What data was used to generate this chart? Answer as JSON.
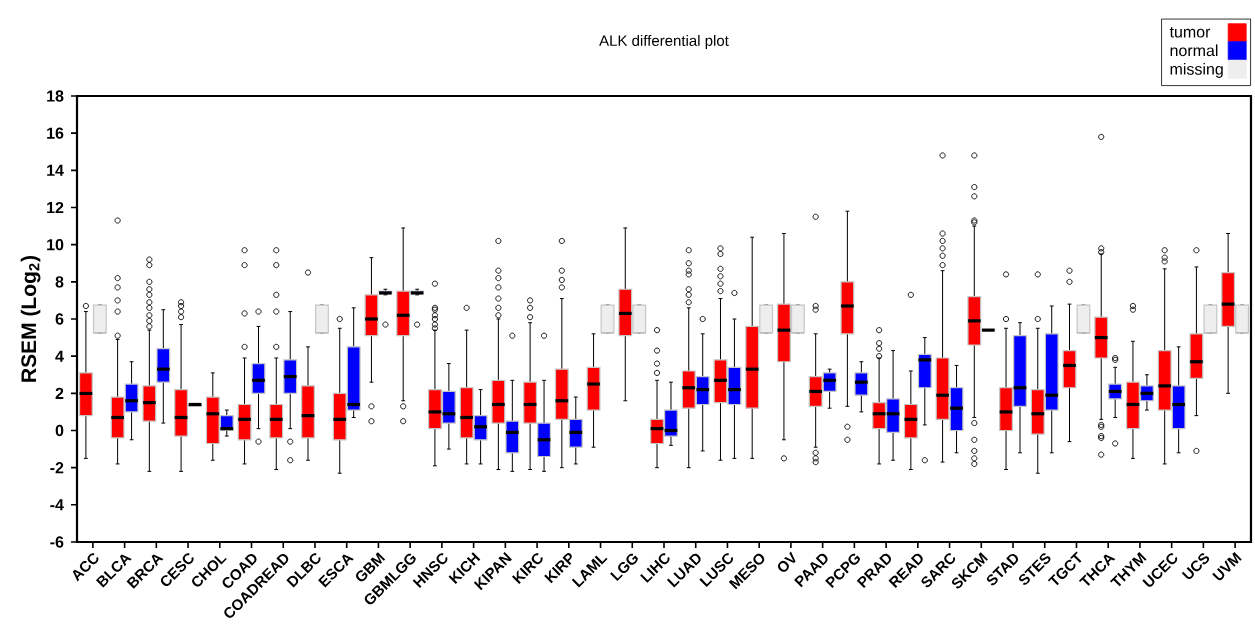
{
  "chart_data": {
    "type": "box",
    "title": "ALK differential plot",
    "ylabel": "RSEM (Log$_{2}$)",
    "categories": [
      "ACC",
      "BLCA",
      "BRCA",
      "CESC",
      "CHOL",
      "COAD",
      "COADREAD",
      "DLBC",
      "ESCA",
      "GBM",
      "GBMLGG",
      "HNSC",
      "KICH",
      "KIPAN",
      "KIRC",
      "KIRP",
      "LAML",
      "LGG",
      "LIHC",
      "LUAD",
      "LUSC",
      "MESO",
      "OV",
      "PAAD",
      "PCPG",
      "PRAD",
      "READ",
      "SARC",
      "SKCM",
      "STAD",
      "STES",
      "TGCT",
      "THCA",
      "THYM",
      "UCEC",
      "UCS",
      "UVM"
    ],
    "ylim": [
      -6,
      18
    ],
    "yticks": [
      -6,
      -4,
      -2,
      0,
      2,
      4,
      6,
      8,
      10,
      12,
      14,
      16,
      18
    ],
    "legend": "top right",
    "marker": "circle",
    "series": [
      {
        "name": "tumor",
        "color": "#ff0000",
        "boxes": [
          {
            "low": -1.5,
            "q1": 0.8,
            "median": 2.0,
            "q3": 3.1,
            "high": 6.4,
            "outliers": [
              6.7
            ]
          },
          {
            "low": -1.8,
            "q1": -0.4,
            "median": 0.7,
            "q3": 1.8,
            "high": 4.9,
            "outliers": [
              5.1,
              6.4,
              7.0,
              7.7,
              8.2,
              11.3
            ]
          },
          {
            "low": -2.2,
            "q1": 0.5,
            "median": 1.5,
            "q3": 2.4,
            "high": 5.4,
            "outliers": [
              5.6,
              5.9,
              6.2,
              6.6,
              6.9,
              7.3,
              7.6,
              8.0,
              8.9,
              9.2
            ]
          },
          {
            "low": -2.2,
            "q1": -0.3,
            "median": 0.7,
            "q3": 2.2,
            "high": 5.7,
            "outliers": [
              6.1,
              6.4,
              6.7,
              6.9
            ]
          },
          {
            "low": -1.6,
            "q1": -0.7,
            "median": 0.9,
            "q3": 1.8,
            "high": 3.1
          },
          {
            "low": -1.8,
            "q1": -0.5,
            "median": 0.6,
            "q3": 1.4,
            "high": 3.9,
            "outliers": [
              4.5,
              6.3,
              8.9,
              9.7
            ]
          },
          {
            "low": -2.1,
            "q1": -0.4,
            "median": 0.6,
            "q3": 1.4,
            "high": 3.9,
            "outliers": [
              4.5,
              6.4,
              7.3,
              8.9,
              9.7
            ]
          },
          {
            "low": -1.6,
            "q1": -0.4,
            "median": 0.8,
            "q3": 2.4,
            "high": 4.5,
            "outliers": [
              8.5
            ]
          },
          {
            "low": -2.3,
            "q1": -0.5,
            "median": 0.6,
            "q3": 2.0,
            "high": 5.5,
            "outliers": [
              6.0
            ]
          },
          {
            "low": 2.6,
            "q1": 5.1,
            "median": 6.0,
            "q3": 7.3,
            "high": 9.3,
            "outliers": [
              0.5,
              1.3
            ]
          },
          {
            "low": 1.6,
            "q1": 5.1,
            "median": 6.2,
            "q3": 7.5,
            "high": 10.9,
            "outliers": [
              0.5,
              1.3
            ]
          },
          {
            "low": -1.9,
            "q1": 0.1,
            "median": 1.0,
            "q3": 2.2,
            "high": 5.4,
            "outliers": [
              5.5,
              5.7,
              6.0,
              6.2,
              6.5,
              6.6,
              7.9
            ]
          },
          {
            "low": -1.8,
            "q1": -0.4,
            "median": 0.7,
            "q3": 2.3,
            "high": 5.4,
            "outliers": [
              6.6
            ]
          },
          {
            "low": -2.1,
            "q1": 0.4,
            "median": 1.4,
            "q3": 2.7,
            "high": 6.0,
            "outliers": [
              6.2,
              6.6,
              7.1,
              7.7,
              8.2,
              8.6,
              10.2
            ]
          },
          {
            "low": -2.1,
            "q1": 0.4,
            "median": 1.4,
            "q3": 2.6,
            "high": 5.8,
            "outliers": [
              6.1,
              6.6,
              7.0
            ]
          },
          {
            "low": -2.0,
            "q1": 0.6,
            "median": 1.6,
            "q3": 3.3,
            "high": 7.1,
            "outliers": [
              7.7,
              8.1,
              8.6,
              10.2
            ]
          },
          {
            "low": -0.9,
            "q1": 1.1,
            "median": 2.5,
            "q3": 3.4,
            "high": 5.2
          },
          {
            "low": 1.6,
            "q1": 5.1,
            "median": 6.3,
            "q3": 7.6,
            "high": 10.9
          },
          {
            "low": -2.0,
            "q1": -0.7,
            "median": 0.1,
            "q3": 0.6,
            "high": 2.7,
            "outliers": [
              3.1,
              3.6,
              4.3,
              5.4
            ]
          },
          {
            "low": -2.0,
            "q1": 1.2,
            "median": 2.3,
            "q3": 3.2,
            "high": 6.6,
            "outliers": [
              6.9,
              7.3,
              7.6,
              8.4,
              8.6,
              9.0,
              9.7
            ]
          },
          {
            "low": -1.6,
            "q1": 1.5,
            "median": 2.7,
            "q3": 3.8,
            "high": 7.1,
            "outliers": [
              7.5,
              7.9,
              8.3,
              8.7,
              9.5,
              9.8
            ]
          },
          {
            "low": -1.5,
            "q1": 1.2,
            "median": 3.3,
            "q3": 5.6,
            "high": 10.4
          },
          {
            "low": -0.5,
            "q1": 3.7,
            "median": 5.4,
            "q3": 6.8,
            "high": 10.6,
            "outliers": [
              -1.5
            ]
          },
          {
            "low": -0.9,
            "q1": 1.3,
            "median": 2.1,
            "q3": 2.9,
            "high": 5.2,
            "outliers": [
              -1.7,
              -1.5,
              -1.2,
              6.5,
              6.7,
              11.5
            ]
          },
          {
            "low": 1.3,
            "q1": 5.2,
            "median": 6.7,
            "q3": 8.0,
            "high": 11.8,
            "outliers": [
              -0.5,
              0.2
            ]
          },
          {
            "low": -1.8,
            "q1": 0.1,
            "median": 0.9,
            "q3": 1.5,
            "high": 3.9,
            "outliers": [
              4.0,
              4.4,
              4.7,
              5.4
            ]
          },
          {
            "low": -2.1,
            "q1": -0.4,
            "median": 0.6,
            "q3": 1.4,
            "high": 3.2,
            "outliers": [
              7.3
            ]
          },
          {
            "low": -1.7,
            "q1": 0.6,
            "median": 1.9,
            "q3": 3.9,
            "high": 8.6,
            "outliers": [
              8.9,
              9.4,
              9.8,
              10.2,
              10.6,
              14.8
            ]
          },
          {
            "low": 0.7,
            "q1": 4.6,
            "median": 5.9,
            "q3": 7.2,
            "high": 11.0,
            "outliers": [
              -1.8,
              -1.5,
              -1.1,
              -0.5,
              0.4,
              11.2,
              11.3,
              12.6,
              13.1,
              14.8
            ]
          },
          {
            "low": -2.1,
            "q1": 0.0,
            "median": 1.0,
            "q3": 2.3,
            "high": 5.5,
            "outliers": [
              6.0,
              8.4
            ]
          },
          {
            "low": -2.3,
            "q1": -0.2,
            "median": 0.9,
            "q3": 2.2,
            "high": 5.5,
            "outliers": [
              6.0,
              8.4
            ]
          },
          {
            "low": -0.6,
            "q1": 2.3,
            "median": 3.5,
            "q3": 4.3,
            "high": 6.8,
            "outliers": [
              8.0,
              8.6
            ]
          },
          {
            "low": 0.6,
            "q1": 3.9,
            "median": 5.0,
            "q3": 6.1,
            "high": 9.5,
            "outliers": [
              -1.3,
              -0.4,
              -0.3,
              0.2,
              0.3,
              9.6,
              9.8,
              15.8
            ]
          },
          {
            "low": -1.5,
            "q1": 0.1,
            "median": 1.4,
            "q3": 2.6,
            "high": 4.8,
            "outliers": [
              6.5,
              6.7
            ]
          },
          {
            "low": -1.8,
            "q1": 1.1,
            "median": 2.4,
            "q3": 4.3,
            "high": 8.7,
            "outliers": [
              9.1,
              9.3,
              9.7
            ]
          },
          {
            "low": 0.8,
            "q1": 2.8,
            "median": 3.7,
            "q3": 5.2,
            "high": 8.8,
            "outliers": [
              -1.1,
              9.7
            ]
          },
          {
            "low": 2.0,
            "q1": 5.6,
            "median": 6.8,
            "q3": 8.5,
            "high": 10.6
          }
        ]
      },
      {
        "name": "normal",
        "color": "#0000ff",
        "boxes": [
          null,
          {
            "low": -0.5,
            "q1": 1.0,
            "median": 1.6,
            "q3": 2.5,
            "high": 3.7
          },
          {
            "low": 0.4,
            "q1": 2.6,
            "median": 3.3,
            "q3": 4.4,
            "high": 6.5
          },
          {
            "low": 1.3,
            "q1": 1.3,
            "median": 1.4,
            "q3": 1.4,
            "high": 1.4
          },
          {
            "low": -0.3,
            "q1": 0.0,
            "median": 0.1,
            "q3": 0.8,
            "high": 1.1
          },
          {
            "low": 0.1,
            "q1": 2.0,
            "median": 2.7,
            "q3": 3.6,
            "high": 5.6,
            "outliers": [
              -0.6,
              6.4
            ]
          },
          {
            "low": 0.1,
            "q1": 2.0,
            "median": 2.9,
            "q3": 3.8,
            "high": 6.4,
            "outliers": [
              -1.6,
              -0.6
            ]
          },
          null,
          {
            "low": 0.7,
            "q1": 1.1,
            "median": 1.4,
            "q3": 4.5,
            "high": 6.6
          },
          {
            "low": 7.3,
            "q1": 7.4,
            "median": 7.4,
            "q3": 7.5,
            "high": 7.6,
            "outliers": [
              5.7
            ]
          },
          {
            "low": 7.3,
            "q1": 7.4,
            "median": 7.4,
            "q3": 7.5,
            "high": 7.6,
            "outliers": [
              5.7
            ]
          },
          {
            "low": -1.0,
            "q1": 0.4,
            "median": 0.9,
            "q3": 2.1,
            "high": 3.6
          },
          {
            "low": -1.8,
            "q1": -0.5,
            "median": 0.2,
            "q3": 0.8,
            "high": 2.2
          },
          {
            "low": -2.2,
            "q1": -1.2,
            "median": -0.1,
            "q3": 0.5,
            "high": 2.7,
            "outliers": [
              5.1
            ]
          },
          {
            "low": -2.2,
            "q1": -1.4,
            "median": -0.5,
            "q3": 0.4,
            "high": 2.7,
            "outliers": [
              5.1
            ]
          },
          {
            "low": -1.8,
            "q1": -0.9,
            "median": -0.1,
            "q3": 0.6,
            "high": 1.8
          },
          null,
          null,
          {
            "low": -0.8,
            "q1": -0.3,
            "median": 0.0,
            "q3": 1.1,
            "high": 2.6
          },
          {
            "low": -1.1,
            "q1": 1.4,
            "median": 2.2,
            "q3": 2.9,
            "high": 5.2,
            "outliers": [
              6.0
            ]
          },
          {
            "low": -1.5,
            "q1": 1.4,
            "median": 2.2,
            "q3": 3.4,
            "high": 6.0,
            "outliers": [
              7.4
            ]
          },
          null,
          null,
          {
            "low": 1.2,
            "q1": 2.1,
            "median": 2.7,
            "q3": 3.1,
            "high": 3.3
          },
          {
            "low": 1.0,
            "q1": 1.9,
            "median": 2.6,
            "q3": 3.1,
            "high": 3.7
          },
          {
            "low": -1.6,
            "q1": -0.1,
            "median": 0.9,
            "q3": 1.7,
            "high": 4.3
          },
          {
            "low": 0.3,
            "q1": 2.3,
            "median": 3.8,
            "q3": 4.1,
            "high": 5.0,
            "outliers": [
              -1.6
            ]
          },
          {
            "low": -1.2,
            "q1": 0.0,
            "median": 1.2,
            "q3": 2.3,
            "high": 3.5
          },
          {
            "low": 5.4,
            "q1": 5.4,
            "median": 5.4,
            "q3": 5.4,
            "high": 5.4
          },
          {
            "low": -1.2,
            "q1": 1.3,
            "median": 2.3,
            "q3": 5.1,
            "high": 5.8
          },
          {
            "low": -1.2,
            "q1": 1.1,
            "median": 1.9,
            "q3": 5.2,
            "high": 6.7
          },
          null,
          {
            "low": 0.7,
            "q1": 1.7,
            "median": 2.1,
            "q3": 2.5,
            "high": 3.4,
            "outliers": [
              -0.7,
              3.8,
              3.9
            ]
          },
          {
            "low": 1.1,
            "q1": 1.6,
            "median": 2.0,
            "q3": 2.4,
            "high": 3.0
          },
          {
            "low": -1.2,
            "q1": 0.1,
            "median": 1.4,
            "q3": 2.4,
            "high": 4.5
          },
          null,
          null
        ]
      },
      {
        "name": "missing",
        "color": "#eeeeee",
        "boxes": [
          {
            "low": 5.25,
            "q1": 5.25,
            "median": 5.25,
            "q3": 6.75,
            "high": 6.75
          },
          null,
          null,
          null,
          null,
          null,
          null,
          {
            "low": 5.25,
            "q1": 5.25,
            "median": 5.25,
            "q3": 6.75,
            "high": 6.75
          },
          null,
          null,
          null,
          null,
          null,
          null,
          null,
          null,
          {
            "low": 5.25,
            "q1": 5.25,
            "median": 5.25,
            "q3": 6.75,
            "high": 6.75
          },
          {
            "low": 5.25,
            "q1": 5.25,
            "median": 5.25,
            "q3": 6.75,
            "high": 6.75
          },
          null,
          null,
          null,
          {
            "low": 5.25,
            "q1": 5.25,
            "median": 5.25,
            "q3": 6.75,
            "high": 6.75
          },
          {
            "low": 5.25,
            "q1": 5.25,
            "median": 5.25,
            "q3": 6.75,
            "high": 6.75
          },
          null,
          null,
          null,
          null,
          null,
          null,
          null,
          null,
          {
            "low": 5.25,
            "q1": 5.25,
            "median": 5.25,
            "q3": 6.75,
            "high": 6.75
          },
          null,
          null,
          null,
          {
            "low": 5.25,
            "q1": 5.25,
            "median": 5.25,
            "q3": 6.75,
            "high": 6.75
          },
          {
            "low": 5.25,
            "q1": 5.25,
            "median": 5.25,
            "q3": 6.75,
            "high": 6.75
          }
        ]
      }
    ]
  }
}
